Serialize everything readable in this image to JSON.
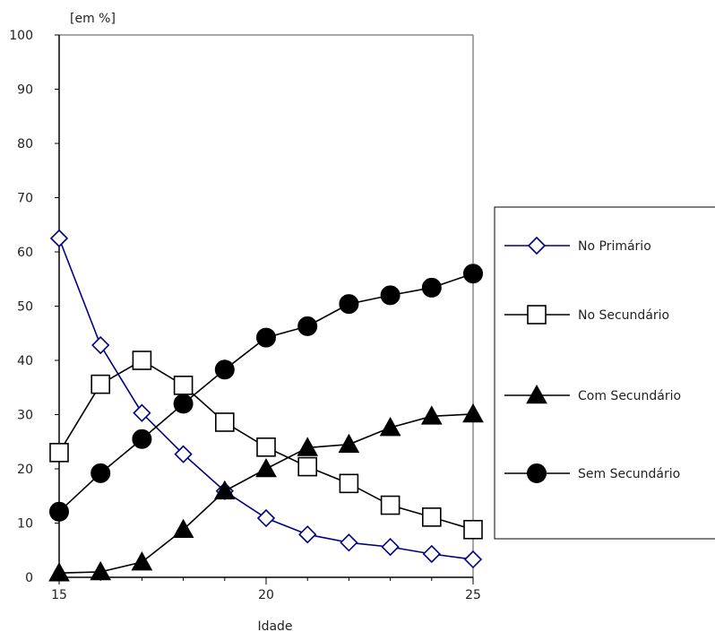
{
  "chart_data": {
    "type": "line",
    "title": "",
    "xlabel": "Idade",
    "ylabel": "[em %]",
    "xlim": [
      15,
      25
    ],
    "ylim": [
      0,
      100
    ],
    "x_ticks": [
      "15",
      "20",
      "25"
    ],
    "y_ticks": [
      "0",
      "10",
      "20",
      "30",
      "40",
      "50",
      "60",
      "70",
      "80",
      "90",
      "100"
    ],
    "x": [
      15,
      16,
      17,
      18,
      19,
      20,
      21,
      22,
      23,
      24,
      25
    ],
    "legend_position": "right",
    "series": [
      {
        "name": "No Primário",
        "marker": "diamond-open",
        "color": "#000080",
        "values": [
          62.5,
          42.8,
          30.3,
          22.7,
          15.9,
          10.9,
          7.9,
          6.4,
          5.6,
          4.3,
          3.3
        ]
      },
      {
        "name": "No Secundário",
        "marker": "square-open",
        "color": "#000000",
        "values": [
          23.0,
          35.6,
          40.0,
          35.4,
          28.6,
          24.0,
          20.4,
          17.3,
          13.3,
          11.1,
          8.8
        ]
      },
      {
        "name": "Com Secundário",
        "marker": "triangle-filled",
        "color": "#000000",
        "values": [
          0.8,
          1.0,
          2.8,
          8.8,
          15.9,
          20.0,
          23.9,
          24.5,
          27.6,
          29.7,
          30.1
        ]
      },
      {
        "name": "Sem Secundário",
        "marker": "circle-filled",
        "color": "#000000",
        "values": [
          12.1,
          19.2,
          25.5,
          32.0,
          38.3,
          44.2,
          46.3,
          50.4,
          52.0,
          53.4,
          56.0
        ]
      }
    ]
  }
}
